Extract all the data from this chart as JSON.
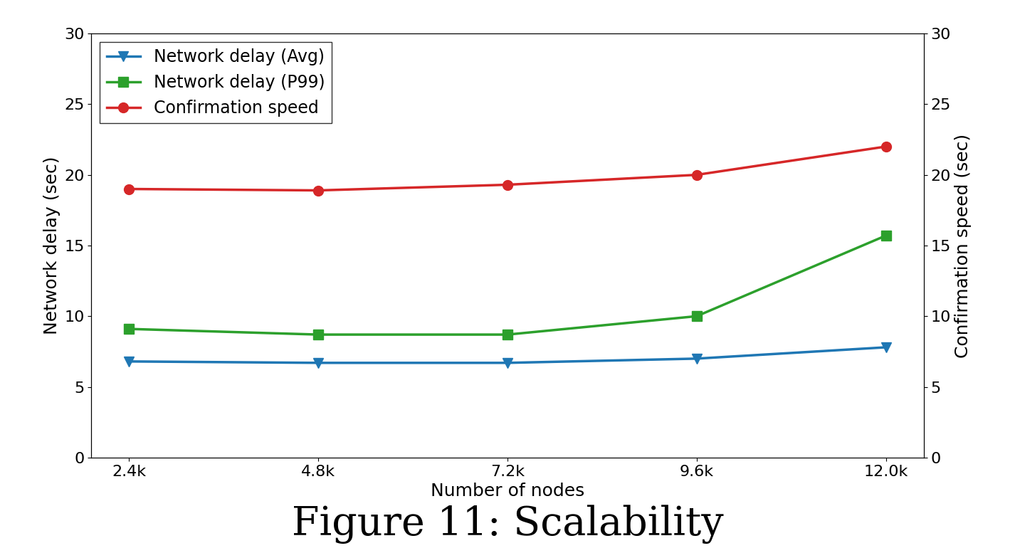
{
  "x_values": [
    2400,
    4800,
    7200,
    9600,
    12000
  ],
  "x_labels": [
    "2.4k",
    "4.8k",
    "7.2k",
    "9.6k",
    "12.0k"
  ],
  "network_delay_avg": [
    6.8,
    6.7,
    6.7,
    7.0,
    7.8
  ],
  "network_delay_p99": [
    9.1,
    8.7,
    8.7,
    10.0,
    15.7
  ],
  "confirmation_speed": [
    19.0,
    18.9,
    19.3,
    20.0,
    22.0
  ],
  "ylabel_left": "Network delay (sec)",
  "ylabel_right": "Confirmation speed (sec)",
  "xlabel": "Number of nodes",
  "ylim_left": [
    0,
    30
  ],
  "ylim_right": [
    0,
    30
  ],
  "yticks": [
    0,
    5,
    10,
    15,
    20,
    25,
    30
  ],
  "legend_labels": [
    "Network delay (Avg)",
    "Network delay (P99)",
    "Confirmation speed"
  ],
  "line_colors": [
    "#1f77b4",
    "#2ca02c",
    "#d62728"
  ],
  "line_markers": [
    "v",
    "s",
    "o"
  ],
  "marker_size": 10,
  "linewidth": 2.5,
  "title": "Figure 11: Scalability",
  "title_fontsize": 40,
  "axis_label_fontsize": 18,
  "tick_fontsize": 16,
  "legend_fontsize": 17,
  "figure_bg": "#ffffff"
}
